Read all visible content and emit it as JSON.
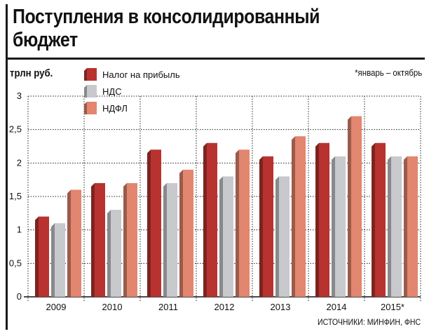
{
  "title": "Поступления в консолидированный бюджет",
  "unit_label": "трлн руб.",
  "footnote": "*январь – октябрь",
  "source": "ИСТОЧНИКИ: МИНФИН, ФНС",
  "colors": {
    "profit_tax": "#b8332f",
    "vat": "#c8c9cc",
    "ndfl": "#e2866f",
    "grid": "#222222"
  },
  "chart_data": {
    "type": "bar",
    "categories": [
      "2009",
      "2010",
      "2011",
      "2012",
      "2013",
      "2014",
      "2015*"
    ],
    "series": [
      {
        "name": "Налог на прибыль",
        "values": [
          1.2,
          1.7,
          2.2,
          2.3,
          2.1,
          2.3,
          2.3
        ]
      },
      {
        "name": "НДС",
        "values": [
          1.1,
          1.3,
          1.7,
          1.8,
          1.8,
          2.1,
          2.1
        ]
      },
      {
        "name": "НДФЛ",
        "values": [
          1.6,
          1.7,
          1.9,
          2.2,
          2.4,
          2.7,
          2.1
        ]
      }
    ],
    "y_ticks": [
      "0",
      "0,5",
      "1",
      "1,5",
      "2",
      "2,5",
      "3"
    ],
    "ylim": [
      0,
      3
    ],
    "grid": true,
    "legend_position": "top-left"
  }
}
